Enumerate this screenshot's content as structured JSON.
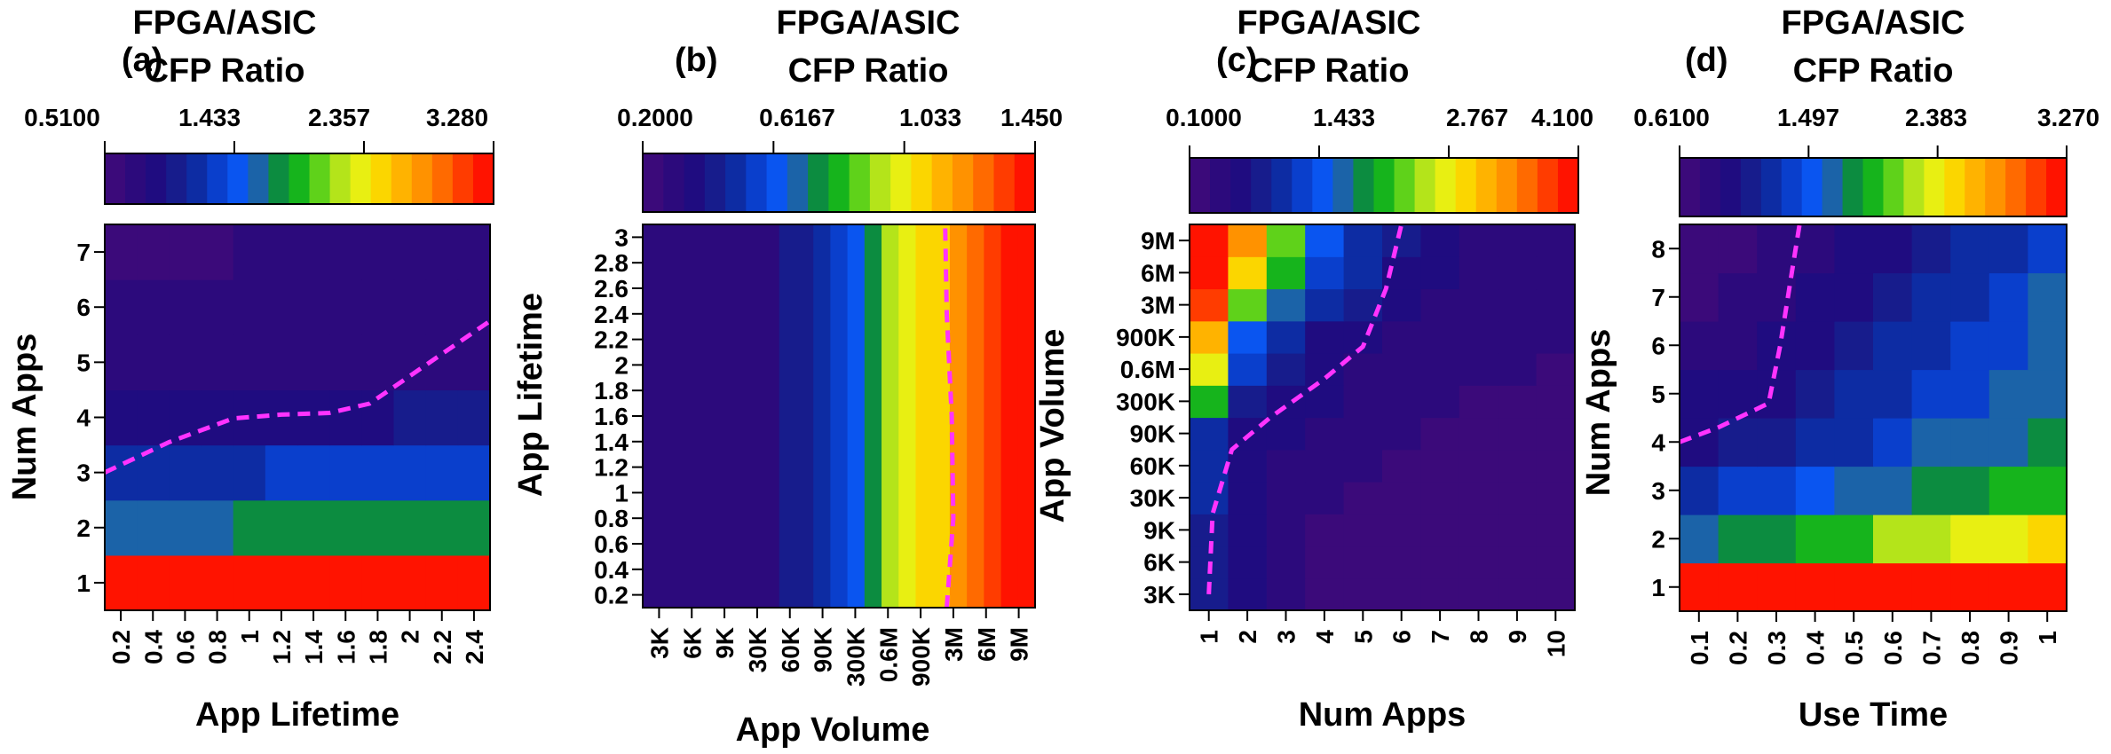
{
  "chart_data": [
    {
      "type": "heatmap",
      "panel_label": "(a)",
      "colorbar_title": [
        "FPGA/ASIC",
        "CFP Ratio"
      ],
      "colorbar_ticks": [
        "0.5100",
        "1.433",
        "2.357",
        "3.280"
      ],
      "xlabel": "App Lifetime",
      "ylabel": "Num Apps",
      "x_ticks": [
        "0.2",
        "0.4",
        "0.6",
        "0.8",
        "1",
        "1.2",
        "1.4",
        "1.6",
        "1.8",
        "2",
        "2.2",
        "2.4"
      ],
      "y_ticks": [
        "1",
        "2",
        "3",
        "4",
        "5",
        "6",
        "7"
      ],
      "color_range": [
        0.51,
        3.28
      ],
      "x_range": [
        0.1,
        2.5
      ],
      "y_range": [
        0.5,
        7.5
      ],
      "values": [
        [
          3.28,
          3.28,
          3.28,
          3.28,
          3.28,
          3.28,
          3.28,
          3.28,
          3.28,
          3.28,
          3.28,
          3.28
        ],
        [
          1.62,
          1.62,
          1.62,
          1.62,
          1.8,
          1.8,
          1.8,
          1.8,
          1.8,
          1.8,
          1.8,
          1.8
        ],
        [
          1.2,
          1.2,
          1.2,
          1.2,
          1.2,
          1.33,
          1.33,
          1.33,
          1.33,
          1.33,
          1.33,
          1.33
        ],
        [
          0.9,
          0.9,
          0.9,
          0.9,
          0.9,
          0.9,
          0.9,
          0.9,
          0.9,
          1.05,
          1.05,
          1.05
        ],
        [
          0.8,
          0.8,
          0.8,
          0.8,
          0.8,
          0.8,
          0.8,
          0.8,
          0.8,
          0.8,
          0.8,
          0.8
        ],
        [
          0.7,
          0.7,
          0.7,
          0.7,
          0.74,
          0.74,
          0.74,
          0.74,
          0.74,
          0.74,
          0.74,
          0.74
        ],
        [
          0.62,
          0.62,
          0.62,
          0.62,
          0.7,
          0.7,
          0.7,
          0.7,
          0.74,
          0.74,
          0.74,
          0.74
        ]
      ],
      "contour_ratio_1": [
        [
          0.1,
          3.0
        ],
        [
          0.5,
          3.55
        ],
        [
          0.9,
          3.98
        ],
        [
          1.2,
          4.05
        ],
        [
          1.5,
          4.08
        ],
        [
          1.75,
          4.25
        ],
        [
          2.1,
          4.95
        ],
        [
          2.5,
          5.75
        ]
      ]
    },
    {
      "type": "heatmap",
      "panel_label": "(b)",
      "colorbar_title": [
        "FPGA/ASIC",
        "CFP Ratio"
      ],
      "colorbar_ticks": [
        "0.2000",
        "0.6167",
        "1.033",
        "1.450"
      ],
      "xlabel": "App Volume",
      "ylabel": "App Lifetime",
      "x_ticks": [
        "3K",
        "6K",
        "9K",
        "30K",
        "60K",
        "90K",
        "300K",
        "0.6M",
        "900K",
        "3M",
        "6M",
        "9M"
      ],
      "y_ticks": [
        "0.2",
        "0.4",
        "0.6",
        "0.8",
        "1",
        "1.2",
        "1.4",
        "1.6",
        "1.8",
        "2",
        "2.2",
        "2.4",
        "2.6",
        "2.8",
        "3"
      ],
      "color_range": [
        0.2,
        1.45
      ],
      "y_range": [
        0.1,
        3.1
      ],
      "column_values": [
        0.28,
        0.28,
        0.28,
        0.28,
        0.28,
        0.28,
        0.3,
        0.33,
        0.4,
        0.46,
        0.52,
        0.58,
        0.66,
        0.78,
        0.93,
        1.02,
        1.06,
        1.12,
        1.2,
        1.28,
        1.34,
        1.4,
        1.44
      ],
      "contour_ratio_1": [
        [
          9.3,
          0.1
        ],
        [
          9.5,
          0.8
        ],
        [
          9.45,
          1.6
        ],
        [
          9.3,
          2.4
        ],
        [
          9.25,
          3.1
        ]
      ]
    },
    {
      "type": "heatmap",
      "panel_label": "(c)",
      "colorbar_title": [
        "FPGA/ASIC",
        "CFP Ratio"
      ],
      "colorbar_ticks": [
        "0.1000",
        "1.433",
        "2.767",
        "4.100"
      ],
      "xlabel": "Num Apps",
      "ylabel": "App Volume",
      "x_ticks": [
        "1",
        "2",
        "3",
        "4",
        "5",
        "6",
        "7",
        "8",
        "9",
        "10"
      ],
      "y_ticks": [
        "3K",
        "6K",
        "9K",
        "30K",
        "60K",
        "90K",
        "300K",
        "0.6M",
        "900K",
        "3M",
        "6M",
        "9M"
      ],
      "color_range": [
        0.1,
        4.1
      ],
      "values": [
        [
          0.9,
          0.55,
          0.45,
          0.3,
          0.3,
          0.28,
          0.25,
          0.25,
          0.25,
          0.25
        ],
        [
          0.9,
          0.55,
          0.45,
          0.3,
          0.3,
          0.28,
          0.25,
          0.25,
          0.25,
          0.25
        ],
        [
          0.9,
          0.55,
          0.45,
          0.3,
          0.3,
          0.28,
          0.25,
          0.25,
          0.25,
          0.25
        ],
        [
          0.95,
          0.6,
          0.45,
          0.32,
          0.3,
          0.28,
          0.25,
          0.25,
          0.25,
          0.25
        ],
        [
          1.05,
          0.65,
          0.5,
          0.4,
          0.32,
          0.3,
          0.28,
          0.28,
          0.27,
          0.27
        ],
        [
          1.15,
          0.7,
          0.55,
          0.45,
          0.38,
          0.32,
          0.3,
          0.3,
          0.28,
          0.28
        ],
        [
          2.1,
          0.85,
          0.65,
          0.55,
          0.45,
          0.38,
          0.32,
          0.3,
          0.3,
          0.3
        ],
        [
          2.8,
          1.2,
          0.8,
          0.62,
          0.5,
          0.42,
          0.38,
          0.33,
          0.32,
          0.3
        ],
        [
          3.2,
          1.45,
          0.95,
          0.72,
          0.55,
          0.48,
          0.4,
          0.36,
          0.34,
          0.33
        ],
        [
          3.7,
          2.4,
          1.6,
          1.05,
          0.8,
          0.6,
          0.48,
          0.42,
          0.38,
          0.36
        ],
        [
          3.9,
          2.9,
          2.1,
          1.3,
          0.95,
          0.7,
          0.55,
          0.48,
          0.42,
          0.4
        ],
        [
          4.0,
          3.4,
          2.3,
          1.5,
          1.1,
          0.8,
          0.6,
          0.52,
          0.45,
          0.42
        ]
      ],
      "contour_ratio_1": [
        [
          1.0,
          0.5
        ],
        [
          1.1,
          3.0
        ],
        [
          1.6,
          5.0
        ],
        [
          2.6,
          6.0
        ],
        [
          4.0,
          7.2
        ],
        [
          5.0,
          8.2
        ],
        [
          5.6,
          10.0
        ],
        [
          6.0,
          12.0
        ]
      ]
    },
    {
      "type": "heatmap",
      "panel_label": "(d)",
      "colorbar_title": [
        "FPGA/ASIC",
        "CFP Ratio"
      ],
      "colorbar_ticks": [
        "0.6100",
        "1.497",
        "2.383",
        "3.270"
      ],
      "xlabel": "Use Time",
      "ylabel": "Num Apps",
      "x_ticks": [
        "0.1",
        "0.2",
        "0.3",
        "0.4",
        "0.5",
        "0.6",
        "0.7",
        "0.8",
        "0.9",
        "1"
      ],
      "y_ticks": [
        "1",
        "2",
        "3",
        "4",
        "5",
        "6",
        "7",
        "8"
      ],
      "color_range": [
        0.61,
        3.27
      ],
      "x_range": [
        0.05,
        1.05
      ],
      "y_range": [
        0.5,
        8.5
      ],
      "values": [
        [
          3.27,
          3.27,
          3.27,
          3.27,
          3.27,
          3.27,
          3.27,
          3.27,
          3.27,
          3.27
        ],
        [
          1.65,
          1.85,
          1.85,
          2.0,
          2.0,
          2.2,
          2.2,
          2.4,
          2.4,
          2.5
        ],
        [
          1.25,
          1.4,
          1.4,
          1.5,
          1.65,
          1.65,
          1.85,
          1.85,
          2.0,
          2.0
        ],
        [
          1.0,
          1.05,
          1.1,
          1.2,
          1.3,
          1.4,
          1.65,
          1.65,
          1.65,
          1.85
        ],
        [
          0.9,
          0.95,
          1.0,
          1.1,
          1.2,
          1.3,
          1.4,
          1.4,
          1.65,
          1.65
        ],
        [
          0.8,
          0.85,
          0.9,
          1.0,
          1.1,
          1.2,
          1.3,
          1.35,
          1.4,
          1.65
        ],
        [
          0.72,
          0.8,
          0.85,
          0.95,
          1.0,
          1.1,
          1.2,
          1.25,
          1.35,
          1.65
        ],
        [
          0.68,
          0.72,
          0.8,
          0.85,
          0.95,
          1.0,
          1.1,
          1.2,
          1.3,
          1.4
        ]
      ],
      "contour_ratio_1": [
        [
          0.05,
          4.0
        ],
        [
          0.15,
          4.3
        ],
        [
          0.28,
          4.8
        ],
        [
          0.31,
          6.0
        ],
        [
          0.34,
          7.5
        ],
        [
          0.36,
          8.5
        ]
      ]
    }
  ],
  "palette": [
    "#3b0a7a",
    "#2c0a7c",
    "#1f0c80",
    "#171c8c",
    "#0d2ca3",
    "#0a3fcc",
    "#0a55f0",
    "#1b63a8",
    "#0c8c40",
    "#16b41c",
    "#5fd21a",
    "#b4e41a",
    "#e8ef12",
    "#fbd600",
    "#ffb300",
    "#ff9200",
    "#ff6a00",
    "#ff3c00",
    "#ff1300"
  ],
  "contour_color": "#ff33ff"
}
